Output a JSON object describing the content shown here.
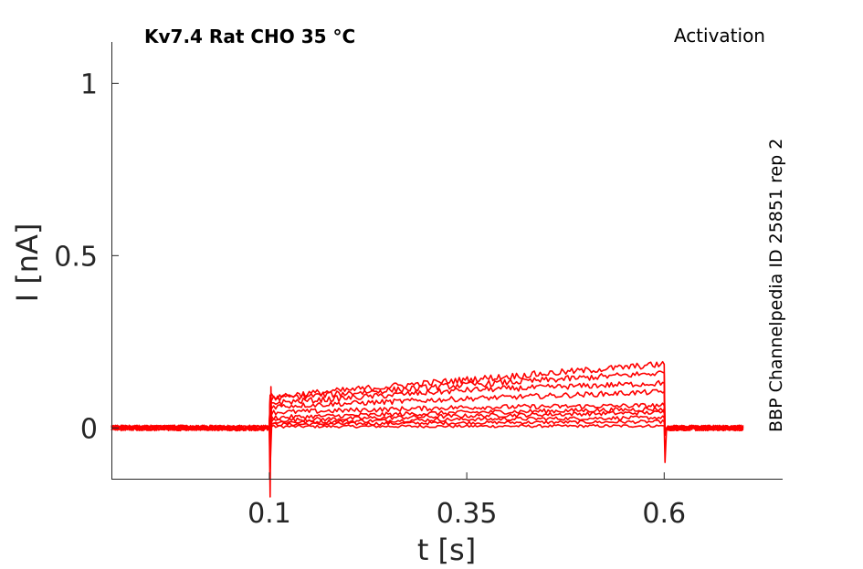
{
  "chart_data": {
    "type": "line",
    "title": "Kv7.4  Rat  CHO  35 °C",
    "annotation_right": "Activation",
    "side_label": "BBP Channelpedia ID 25851 rep 2",
    "xlabel": "t [s]",
    "ylabel": "I [nA]",
    "xlim": [
      -0.1,
      0.75
    ],
    "ylim": [
      -0.15,
      1.12
    ],
    "xticks": [
      0.1,
      0.35,
      0.6
    ],
    "xtick_labels": [
      "0.1",
      "0.35",
      "0.6"
    ],
    "yticks": [
      0,
      0.5,
      1
    ],
    "ytick_labels": [
      "0",
      "0.5",
      "1"
    ],
    "grid": false,
    "line_color": "#ff0000",
    "stimulus": {
      "start": 0.1,
      "end": 0.6,
      "trace_start": -0.1,
      "trace_end": 0.7
    },
    "series": [
      {
        "values": [
          [
            0.1,
            0.004
          ],
          [
            0.35,
            0.005
          ],
          [
            0.6,
            0.006
          ]
        ]
      },
      {
        "values": [
          [
            0.1,
            0.01
          ],
          [
            0.35,
            0.015
          ],
          [
            0.6,
            0.018
          ]
        ]
      },
      {
        "values": [
          [
            0.1,
            0.016
          ],
          [
            0.35,
            0.025
          ],
          [
            0.6,
            0.03
          ]
        ]
      },
      {
        "values": [
          [
            0.1,
            0.022
          ],
          [
            0.35,
            0.035
          ],
          [
            0.6,
            0.045
          ]
        ]
      },
      {
        "values": [
          [
            0.1,
            0.03
          ],
          [
            0.35,
            0.045
          ],
          [
            0.6,
            0.055
          ]
        ]
      },
      {
        "values": [
          [
            0.1,
            0.045
          ],
          [
            0.35,
            0.06
          ],
          [
            0.6,
            0.065
          ]
        ]
      },
      {
        "values": [
          [
            0.1,
            0.062
          ],
          [
            0.35,
            0.085
          ],
          [
            0.6,
            0.105
          ]
        ]
      },
      {
        "values": [
          [
            0.1,
            0.072
          ],
          [
            0.35,
            0.11
          ],
          [
            0.6,
            0.13
          ]
        ]
      },
      {
        "values": [
          [
            0.1,
            0.085
          ],
          [
            0.35,
            0.125
          ],
          [
            0.6,
            0.16
          ]
        ]
      },
      {
        "values": [
          [
            0.1,
            0.09
          ],
          [
            0.35,
            0.14
          ],
          [
            0.6,
            0.185
          ]
        ]
      }
    ]
  }
}
